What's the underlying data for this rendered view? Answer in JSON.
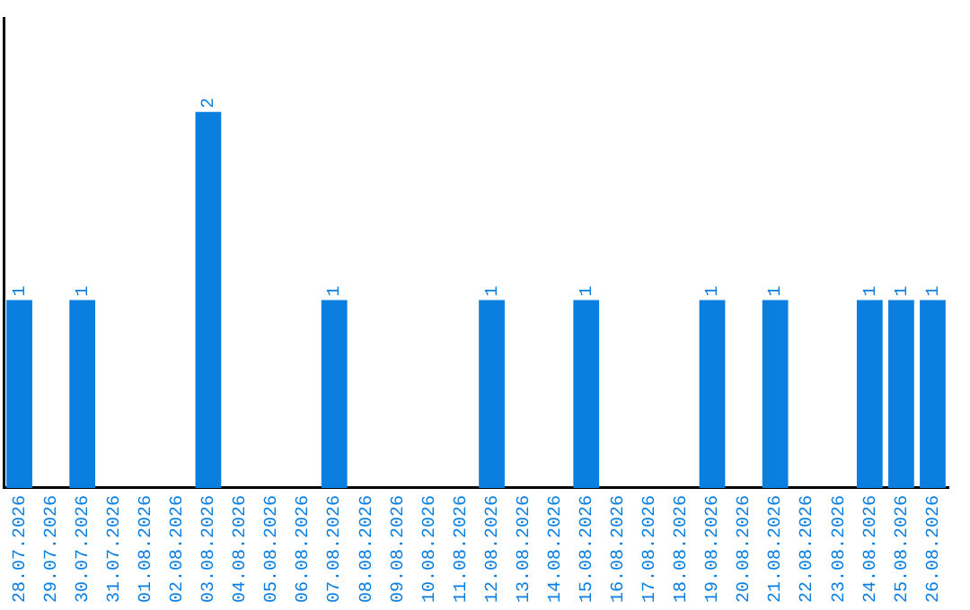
{
  "chart_data": {
    "type": "bar",
    "categories": [
      "28.07.2026",
      "29.07.2026",
      "30.07.2026",
      "31.07.2026",
      "01.08.2026",
      "02.08.2026",
      "03.08.2026",
      "04.08.2026",
      "05.08.2026",
      "06.08.2026",
      "07.08.2026",
      "08.08.2026",
      "09.08.2026",
      "10.08.2026",
      "11.08.2026",
      "12.08.2026",
      "13.08.2026",
      "14.08.2026",
      "15.08.2026",
      "16.08.2026",
      "17.08.2026",
      "18.08.2026",
      "19.08.2026",
      "20.08.2026",
      "21.08.2026",
      "22.08.2026",
      "23.08.2026",
      "24.08.2026",
      "25.08.2026",
      "26.08.2026"
    ],
    "values": [
      1,
      0,
      1,
      0,
      0,
      0,
      2,
      0,
      0,
      0,
      1,
      0,
      0,
      0,
      0,
      1,
      0,
      0,
      1,
      0,
      0,
      0,
      1,
      0,
      1,
      0,
      0,
      1,
      1,
      1
    ],
    "value_labels": [
      "1",
      null,
      "1",
      null,
      null,
      null,
      "2",
      null,
      null,
      null,
      "1",
      null,
      null,
      null,
      null,
      "1",
      null,
      null,
      "1",
      null,
      null,
      null,
      "1",
      null,
      "1",
      null,
      null,
      "1",
      "1",
      "1"
    ],
    "color": "#0a7fe0",
    "grid": false,
    "legend": false
  }
}
